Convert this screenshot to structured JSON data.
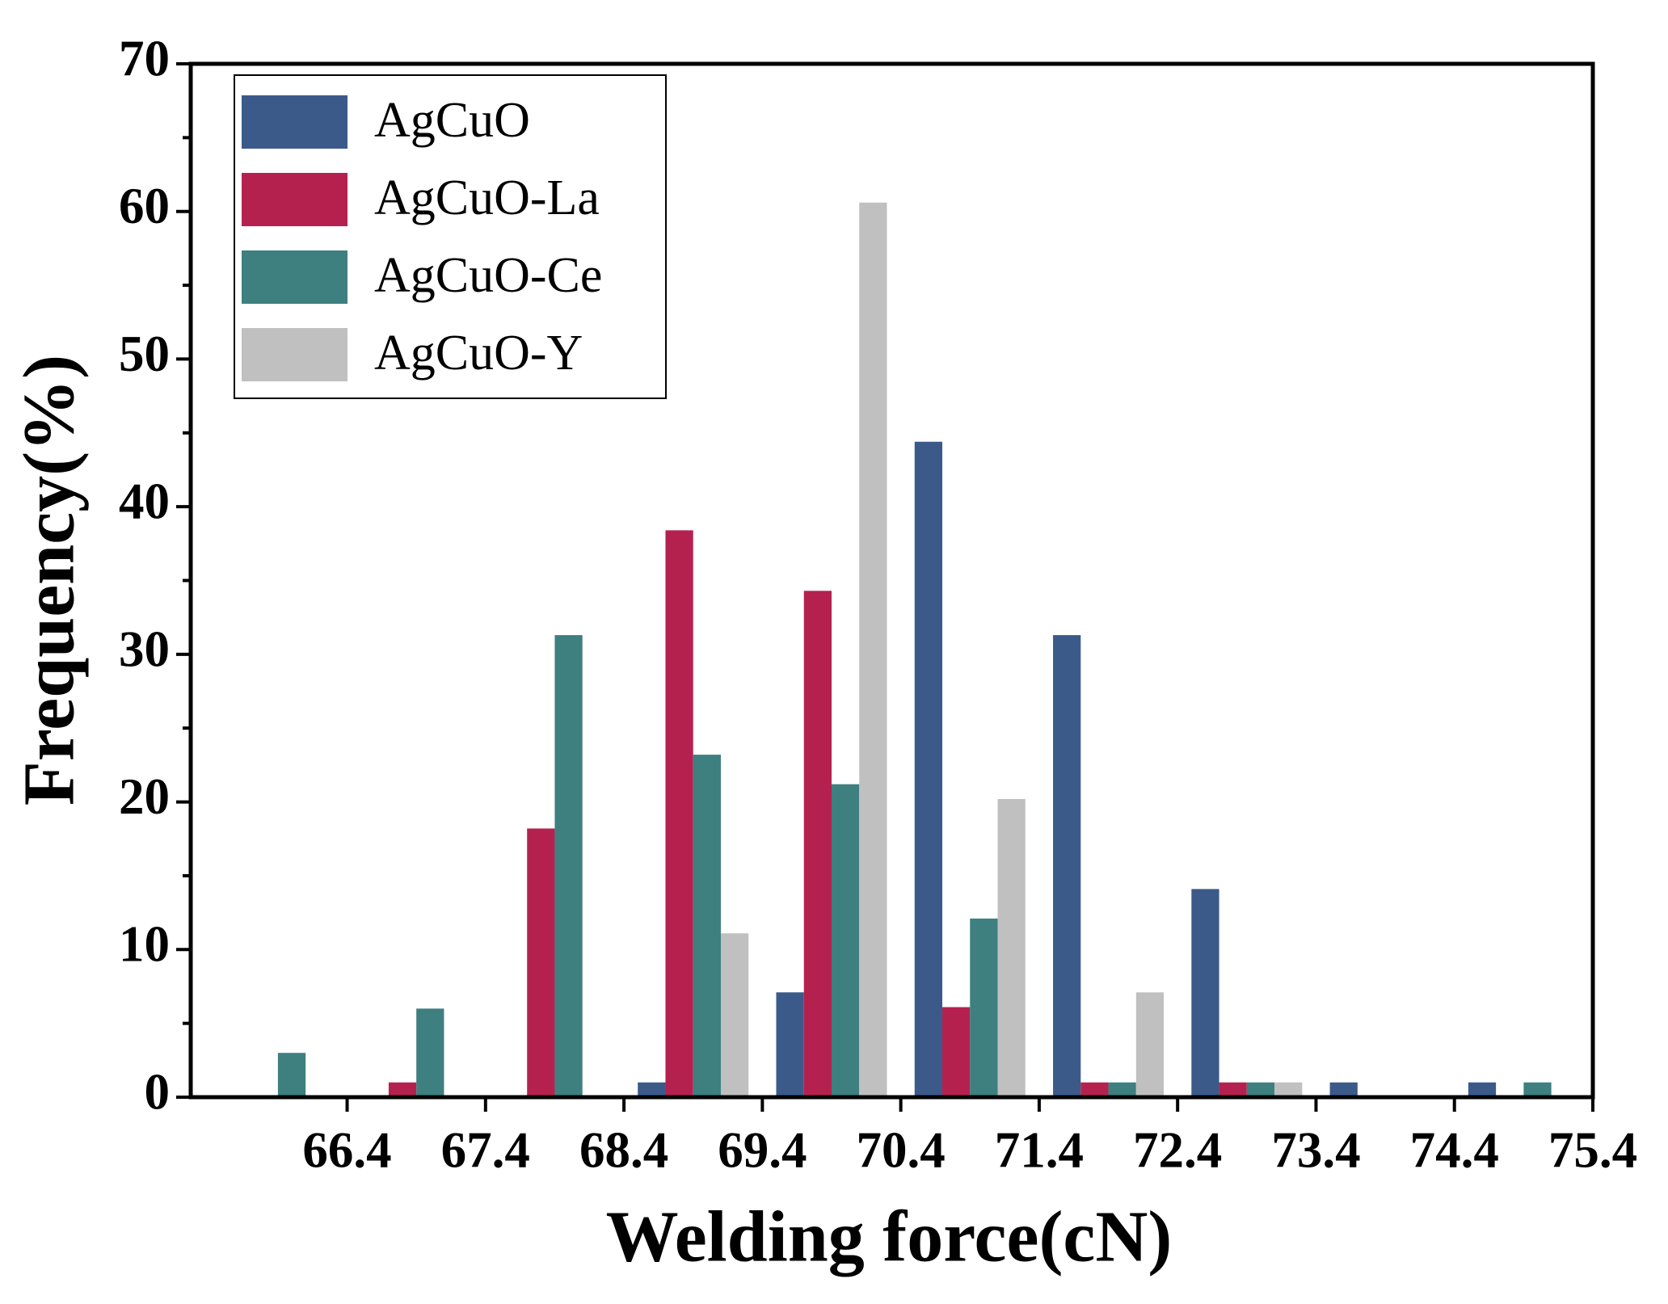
{
  "chart_data": {
    "type": "histogram",
    "xlabel": "Welding force(cN)",
    "ylabel": "Frequency(%)",
    "bins": [
      65.4,
      66.4,
      67.4,
      68.4,
      69.4,
      70.4,
      71.4,
      72.4,
      73.4,
      74.4,
      75.4
    ],
    "series": [
      {
        "name": "AgCuO",
        "color": "#3b5a8a",
        "values": [
          0,
          0,
          0,
          1,
          7.1,
          44.4,
          31.3,
          14.1,
          1,
          1
        ]
      },
      {
        "name": "AgCuO-La",
        "color": "#b5214f",
        "values": [
          0,
          1,
          18.2,
          38.4,
          34.3,
          6.1,
          1,
          1,
          0,
          0
        ]
      },
      {
        "name": "AgCuO-Ce",
        "color": "#3e7f80",
        "values": [
          3,
          6,
          31.3,
          23.2,
          21.2,
          12.1,
          1,
          1,
          0,
          1
        ]
      },
      {
        "name": "AgCuO-Y",
        "color": "#c0c0c0",
        "values": [
          0,
          0,
          0,
          11.1,
          60.6,
          20.2,
          7.1,
          1,
          0,
          0
        ]
      }
    ],
    "xlim": [
      65.27,
      75.4
    ],
    "xticks": [
      66.4,
      67.4,
      68.4,
      69.4,
      70.4,
      71.4,
      72.4,
      73.4,
      74.4,
      75.4
    ],
    "ylim": [
      0,
      70
    ],
    "yticks": [
      0,
      10,
      20,
      30,
      40,
      50,
      60,
      70
    ],
    "legend": "upper-left",
    "grid": false
  }
}
